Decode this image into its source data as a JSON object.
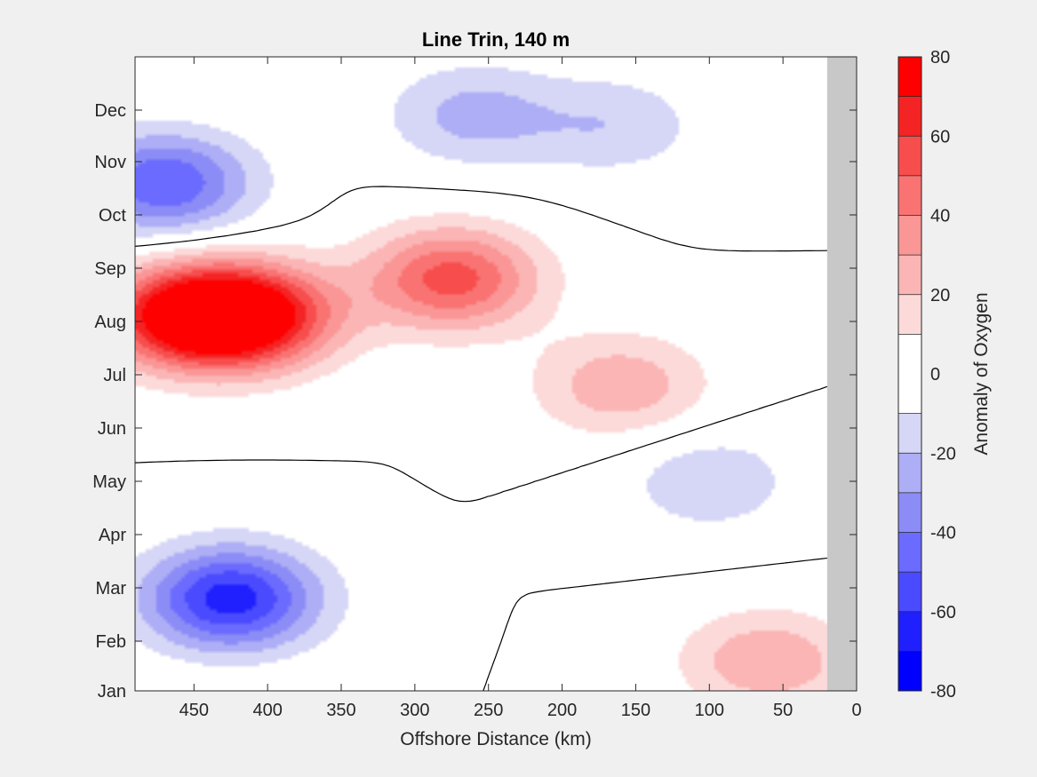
{
  "chart_data": {
    "type": "heatmap",
    "subtype": "filled-contour",
    "title": "Line Trin, 140 m",
    "xlabel": "Offshore Distance (km)",
    "ylabel": "",
    "xlim": [
      490,
      0
    ],
    "x_reversed": true,
    "x_ticks": [
      450,
      400,
      350,
      300,
      250,
      200,
      150,
      100,
      50,
      0
    ],
    "y_ticks": [
      "Jan",
      "Feb",
      "Mar",
      "Apr",
      "May",
      "Jun",
      "Jul",
      "Aug",
      "Sep",
      "Oct",
      "Nov",
      "Dec"
    ],
    "colorbar": {
      "label": "Anomaly of Oxygen",
      "range": [
        -80,
        80
      ],
      "ticks": [
        80,
        60,
        40,
        20,
        0,
        -20,
        -40,
        -60,
        -80
      ],
      "levels": [
        -80,
        -70,
        -60,
        -50,
        -40,
        -30,
        -20,
        -10,
        10,
        20,
        30,
        40,
        50,
        60,
        70,
        80
      ],
      "colors": [
        "#0000ff",
        "#2020ff",
        "#4a4aff",
        "#6b6bff",
        "#8c8cf6",
        "#aeaef6",
        "#d6d6f7",
        "#ffffff",
        "#fddada",
        "#fbb5b5",
        "#fa9696",
        "#fa7373",
        "#f74d4d",
        "#f52424",
        "#ff0000"
      ]
    },
    "no_data_color": "#c8c8c8",
    "no_data_x_range": [
      20,
      0
    ],
    "anomalies": [
      {
        "x": 455,
        "month": 7.1,
        "value": 74
      },
      {
        "x": 410,
        "month": 7.1,
        "value": 70
      },
      {
        "x": 275,
        "month": 7.8,
        "value": 55
      },
      {
        "x": 160,
        "month": 5.8,
        "value": 28
      },
      {
        "x": 60,
        "month": 0.6,
        "value": 30
      },
      {
        "x": 425,
        "month": 1.8,
        "value": -66
      },
      {
        "x": 470,
        "month": 9.6,
        "value": -50
      },
      {
        "x": 165,
        "month": 10.7,
        "value": -18
      },
      {
        "x": 260,
        "month": 10.9,
        "value": -24
      },
      {
        "x": 100,
        "month": 4.0,
        "value": -18
      }
    ]
  }
}
